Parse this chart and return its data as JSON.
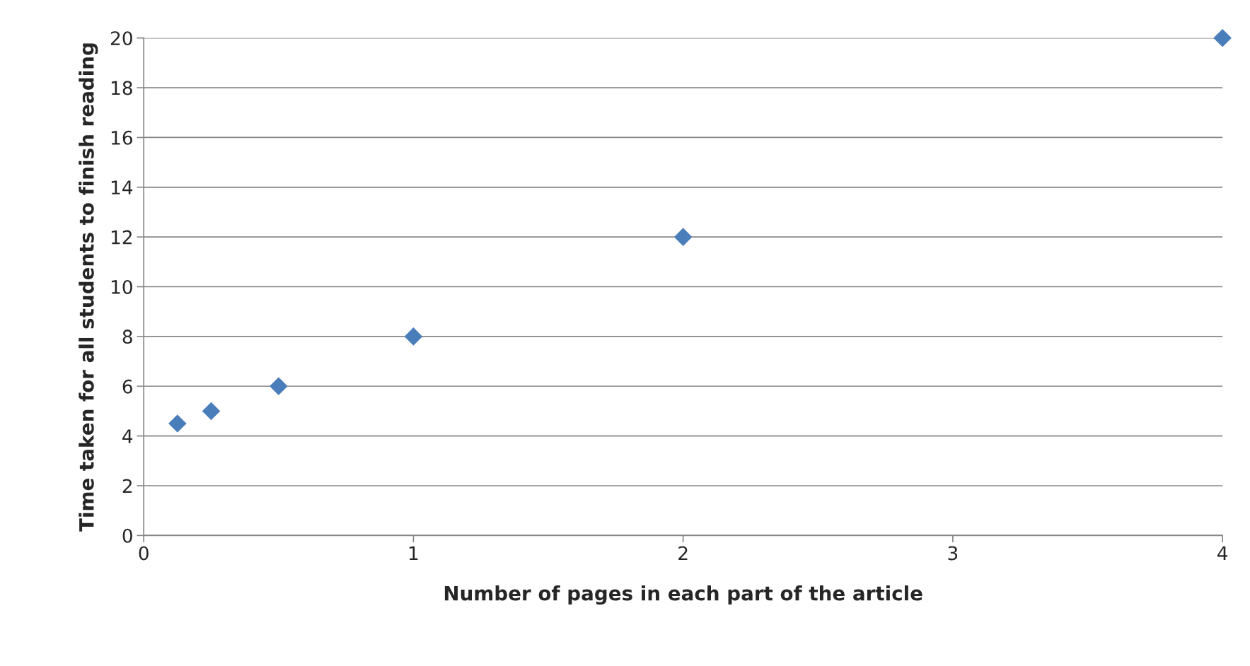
{
  "chart_data": {
    "type": "scatter",
    "xlabel": "Number of pages in each part of the article",
    "ylabel": "Time taken for all students to finish reading",
    "x": [
      0.125,
      0.25,
      0.5,
      1,
      2,
      4
    ],
    "series": [
      {
        "color": "#4a7ebb",
        "values": [
          4.5,
          5,
          6,
          8,
          12,
          20
        ]
      }
    ],
    "xlim": [
      0,
      4
    ],
    "xticks": [
      0,
      1,
      2,
      3,
      4
    ],
    "ylim": [
      0,
      20
    ],
    "yticks": [
      0,
      2,
      4,
      6,
      8,
      10,
      12,
      14,
      16,
      18,
      20
    ],
    "grid": "y",
    "marker": "diamond"
  }
}
